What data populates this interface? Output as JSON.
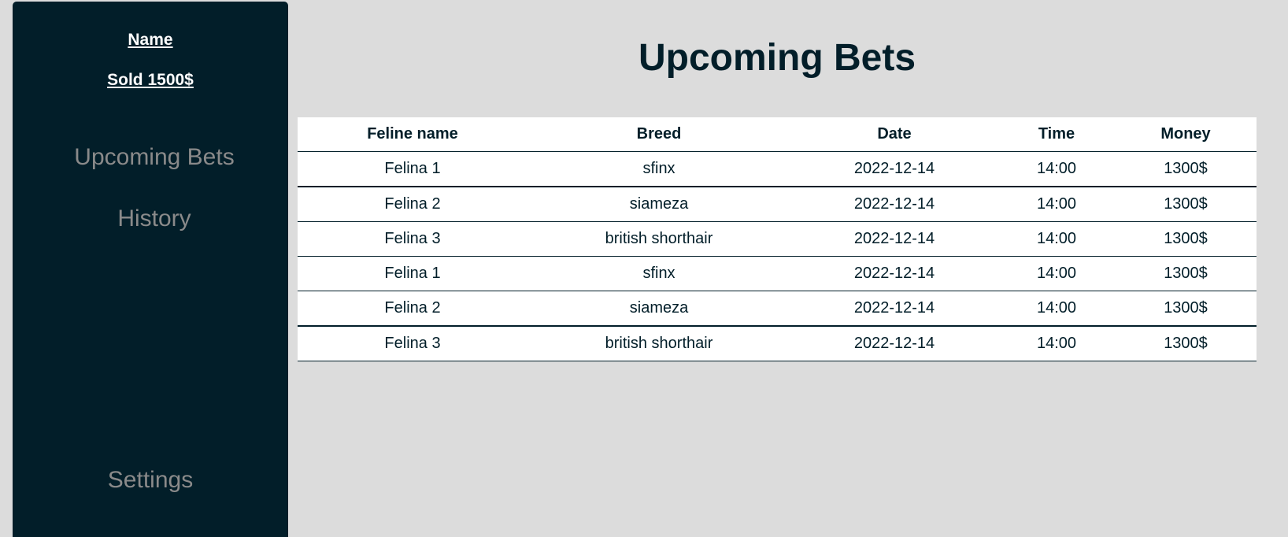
{
  "sidebar": {
    "user_name": "Name",
    "sold": "Sold 1500$",
    "nav": {
      "upcoming": "Upcoming Bets",
      "history": "History",
      "settings": "Settings"
    }
  },
  "main": {
    "title": "Upcoming Bets",
    "table": {
      "headers": [
        "Feline name",
        "Breed",
        "Date",
        "Time",
        "Money"
      ],
      "rows": [
        [
          "Felina 1",
          "sfinx",
          "2022-12-14",
          "14:00",
          "1300$"
        ],
        [
          "Felina 2",
          "siameza",
          "2022-12-14",
          "14:00",
          "1300$"
        ],
        [
          "Felina 3",
          "british shorthair",
          "2022-12-14",
          "14:00",
          "1300$"
        ],
        [
          "Felina 1",
          "sfinx",
          "2022-12-14",
          "14:00",
          "1300$"
        ],
        [
          "Felina 2",
          "siameza",
          "2022-12-14",
          "14:00",
          "1300$"
        ],
        [
          "Felina 3",
          "british shorthair",
          "2022-12-14",
          "14:00",
          "1300$"
        ]
      ]
    }
  },
  "colors": {
    "sidebar_bg": "#021e29",
    "page_bg": "#dcdcdc",
    "nav_text": "#8a8a8a",
    "accent_text": "#021e29"
  }
}
